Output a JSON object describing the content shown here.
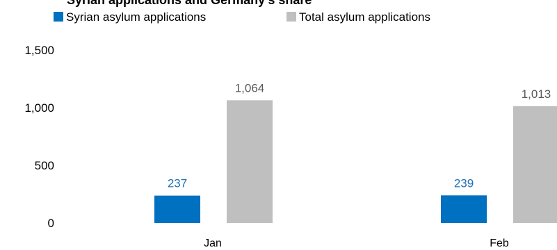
{
  "chart_data": {
    "type": "bar",
    "title": "Syrian applications and Germany's share",
    "categories": [
      "Jan",
      "Feb"
    ],
    "series": [
      {
        "name": "Syrian asylum applications",
        "color": "#0070C0",
        "label_color": "#1F6FB5",
        "values": [
          237,
          239
        ],
        "value_labels": [
          "237",
          "239"
        ]
      },
      {
        "name": "Total asylum applications",
        "color": "#BFBFBF",
        "label_color": "#595959",
        "values": [
          1064,
          1013
        ],
        "value_labels": [
          "1,064",
          "1,013"
        ]
      }
    ],
    "ylim": [
      0,
      1500
    ],
    "yticks": [
      0,
      500,
      1000,
      1500
    ],
    "ytick_labels": [
      "0",
      "500",
      "1,000",
      "1,500"
    ],
    "grid": false,
    "legend_position": "top"
  }
}
